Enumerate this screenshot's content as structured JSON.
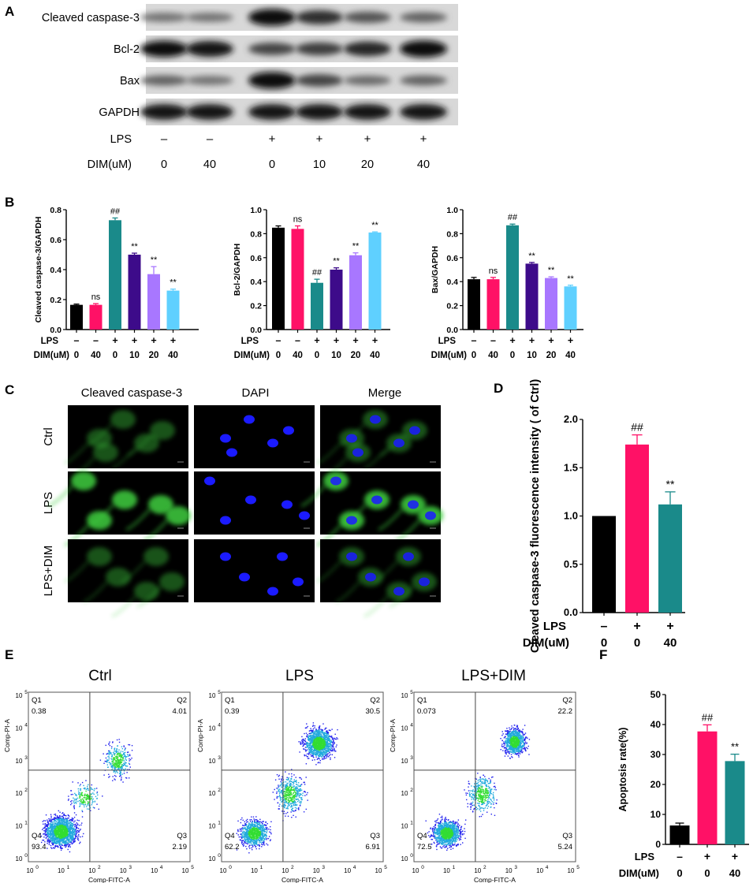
{
  "panel_letters": {
    "a": "A",
    "b": "B",
    "c": "C",
    "d": "D",
    "e": "E",
    "f": "F"
  },
  "colors": {
    "ctrl": "#000000",
    "dim": "#ff1166",
    "lps": "#1a8a8a",
    "d10": "#3d0b8a",
    "d20": "#a877ff",
    "d40": "#5fd0ff",
    "blot_bg": "#d8d8d8",
    "fluor_green": "#3fcf3f",
    "fluor_blue": "#1b1bff",
    "flow_blue": "#2222ee"
  },
  "panel_a": {
    "rows": [
      "Cleaved caspase-3",
      "Bcl-2",
      "Bax",
      "GAPDH"
    ],
    "lps_label": "LPS",
    "lps_values": [
      "–",
      "–",
      "+",
      "+",
      "+",
      "+"
    ],
    "dim_label": "DIM(uM)",
    "dim_values": [
      "0",
      "40",
      "0",
      "10",
      "20",
      "40"
    ],
    "band_intensity": [
      [
        0.25,
        0.25,
        0.95,
        0.7,
        0.45,
        0.35
      ],
      [
        0.9,
        0.85,
        0.55,
        0.6,
        0.75,
        0.95
      ],
      [
        0.35,
        0.25,
        0.95,
        0.55,
        0.3,
        0.35
      ],
      [
        0.85,
        0.85,
        0.85,
        0.85,
        0.85,
        0.85
      ]
    ]
  },
  "group_rows": {
    "lps": "LPS",
    "dim": "DIM(uM)",
    "lps6": [
      "–",
      "–",
      "+",
      "+",
      "+",
      "+"
    ],
    "dim6": [
      "0",
      "40",
      "0",
      "10",
      "20",
      "40"
    ],
    "lps3": [
      "–",
      "+",
      "+"
    ],
    "dim3": [
      "0",
      "0",
      "40"
    ]
  },
  "chart_data": [
    {
      "id": "b1",
      "type": "bar",
      "ylabel": "Cleaved caspase-3/GAPDH",
      "categories": [
        "1",
        "2",
        "3",
        "4",
        "5",
        "6"
      ],
      "values": [
        0.165,
        0.165,
        0.73,
        0.5,
        0.37,
        0.26
      ],
      "errors": [
        0.005,
        0.008,
        0.015,
        0.01,
        0.05,
        0.01
      ],
      "annotations": [
        "",
        "ns",
        "##",
        "**",
        "**",
        "**"
      ],
      "ylim": [
        0,
        0.8
      ],
      "yticks": [
        "0.0",
        "0.2",
        "0.4",
        "0.6",
        "0.8"
      ]
    },
    {
      "id": "b2",
      "type": "bar",
      "ylabel": "Bcl-2/GAPDH",
      "categories": [
        "1",
        "2",
        "3",
        "4",
        "5",
        "6"
      ],
      "values": [
        0.85,
        0.84,
        0.39,
        0.5,
        0.62,
        0.81
      ],
      "errors": [
        0.015,
        0.025,
        0.03,
        0.015,
        0.02,
        0.005
      ],
      "annotations": [
        "",
        "ns",
        "##",
        "**",
        "**",
        "**"
      ],
      "ylim": [
        0,
        1.0
      ],
      "yticks": [
        "0.0",
        "0.2",
        "0.4",
        "0.6",
        "0.8",
        "1.0"
      ]
    },
    {
      "id": "b3",
      "type": "bar",
      "ylabel": "Bax/GAPDH",
      "categories": [
        "1",
        "2",
        "3",
        "4",
        "5",
        "6"
      ],
      "values": [
        0.42,
        0.42,
        0.87,
        0.55,
        0.43,
        0.36
      ],
      "errors": [
        0.015,
        0.015,
        0.01,
        0.01,
        0.01,
        0.01
      ],
      "annotations": [
        "",
        "ns",
        "##",
        "**",
        "**",
        "**"
      ],
      "ylim": [
        0,
        1.0
      ],
      "yticks": [
        "0.0",
        "0.2",
        "0.4",
        "0.6",
        "0.8",
        "1.0"
      ]
    },
    {
      "id": "d",
      "type": "bar",
      "ylabel": "Cleaved caspase-3  fluorescence intensity ( of Ctrl)",
      "categories": [
        "1",
        "2",
        "3"
      ],
      "values": [
        1.0,
        1.74,
        1.12
      ],
      "errors": [
        0,
        0.1,
        0.13
      ],
      "annotations": [
        "",
        "##",
        "**"
      ],
      "ylim": [
        0,
        2.0
      ],
      "yticks": [
        "0.0",
        "0.5",
        "1.0",
        "1.5",
        "2.0"
      ]
    },
    {
      "id": "f",
      "type": "bar",
      "ylabel": "Apoptosis rate(%)",
      "categories": [
        "1",
        "2",
        "3"
      ],
      "values": [
        6.3,
        37.7,
        27.8
      ],
      "errors": [
        0.8,
        2.2,
        2.3
      ],
      "annotations": [
        "",
        "##",
        "**"
      ],
      "ylim": [
        0,
        50
      ],
      "yticks": [
        "0",
        "10",
        "20",
        "30",
        "40",
        "50"
      ]
    }
  ],
  "panel_c": {
    "columns": [
      "Cleaved caspase-3",
      "DAPI",
      "Merge"
    ],
    "rows": [
      "Ctrl",
      "LPS",
      "LPS+DIM"
    ]
  },
  "panel_e": {
    "titles": [
      "Ctrl",
      "LPS",
      "LPS+DIM"
    ],
    "xlabel": "Comp-FITC-A",
    "ylabel": "Comp-PI-A",
    "quadrants": [
      {
        "q1": "0.38",
        "q2": "4.01",
        "q3": "2.19",
        "q4": "93.4"
      },
      {
        "q1": "0.39",
        "q2": "30.5",
        "q3": "6.91",
        "q4": "62.2"
      },
      {
        "q1": "0.073",
        "q2": "22.2",
        "q3": "5.24",
        "q4": "72.5"
      }
    ],
    "qnames": [
      "Q1",
      "Q2",
      "Q3",
      "Q4"
    ],
    "decades": [
      "0",
      "1",
      "2",
      "3",
      "4",
      "5"
    ]
  }
}
